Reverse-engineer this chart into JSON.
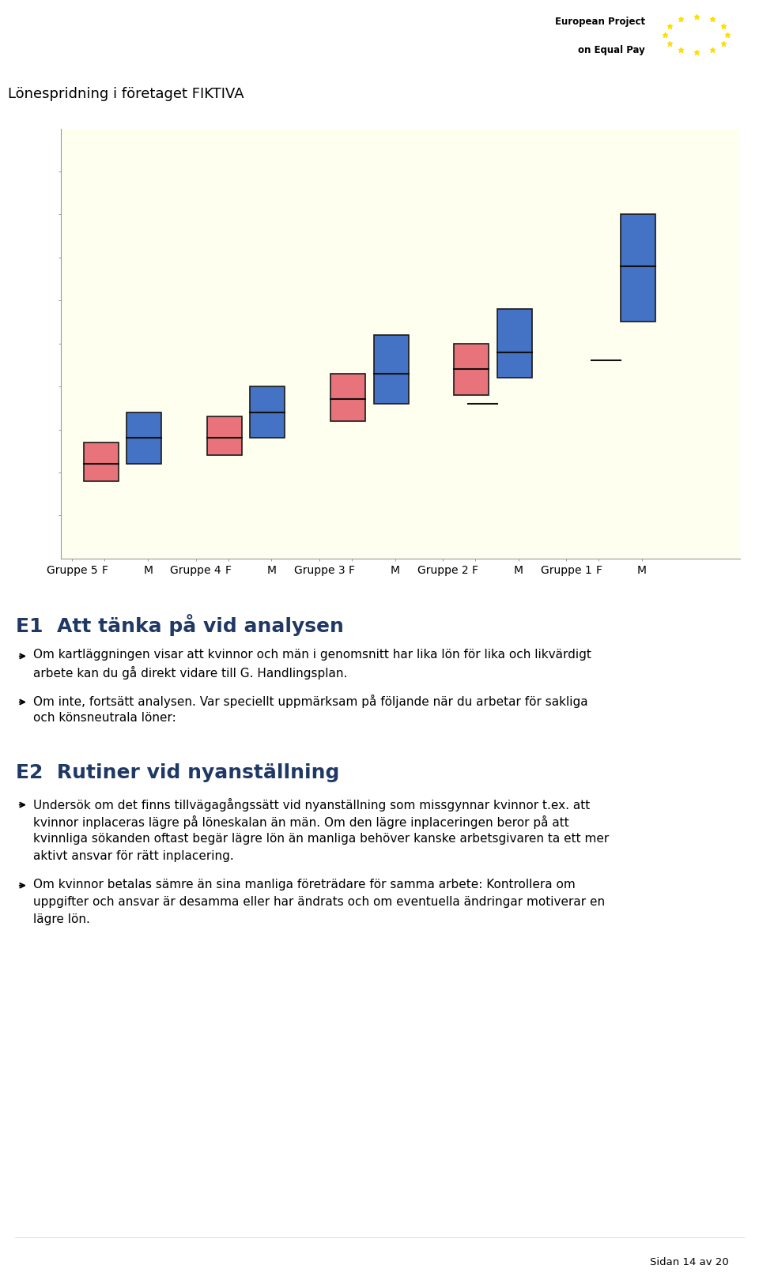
{
  "page_title": "Lönespridning i företaget FIKTIVA",
  "chart_bg": "#FFFFF0",
  "page_bg": "#FFFFFF",
  "groups": [
    "Gruppe 5",
    "Gruppe 4",
    "Gruppe 3",
    "Gruppe 2",
    "Gruppe 1"
  ],
  "F_boxes": [
    {
      "q1": 18,
      "median": 22,
      "q3": 27,
      "whisker_low": null
    },
    {
      "q1": 24,
      "median": 28,
      "q3": 33,
      "whisker_low": null
    },
    {
      "q1": 32,
      "median": 37,
      "q3": 43,
      "whisker_low": null
    },
    {
      "q1": 38,
      "median": 44,
      "q3": 50,
      "whisker_low": null
    },
    {
      "q1": null,
      "median": null,
      "q3": null,
      "whisker_low": null
    }
  ],
  "M_boxes": [
    {
      "q1": 22,
      "median": 28,
      "q3": 34,
      "whisker_low": null
    },
    {
      "q1": 28,
      "median": 34,
      "q3": 40,
      "whisker_low": null
    },
    {
      "q1": 36,
      "median": 43,
      "q3": 52,
      "whisker_low": null
    },
    {
      "q1": 42,
      "median": 48,
      "q3": 58,
      "whisker_low": 36
    },
    {
      "q1": 55,
      "median": 68,
      "q3": 80,
      "whisker_low": 46
    }
  ],
  "F_color": "#E8737A",
  "M_color": "#4472C4",
  "ylim": [
    0,
    100
  ],
  "ytick_positions": [
    10,
    20,
    30,
    40,
    50,
    60,
    70,
    80,
    90
  ],
  "heading_color": "#1F3864",
  "text_color": "#000000",
  "text_sections": [
    {
      "type": "heading1",
      "text": "E1  Att tänka på vid analysen"
    },
    {
      "type": "bullet",
      "text": "Om kartläggningen visar att kvinnor och män i genomsnitt har lika lön för lika och likvärdigt arbete kan du gå direkt vidare till G. Handlingsplan."
    },
    {
      "type": "bullet",
      "text": "Om inte, fortsätt analysen. Var speciellt uppmärksam på följande när du arbetar för sakliga och könsneutrala löner:"
    },
    {
      "type": "spacer"
    },
    {
      "type": "heading2",
      "text": "E2  Rutiner vid nyanställning"
    },
    {
      "type": "bullet",
      "text": "Undersök om det finns tillvägagångssätt vid nyanställning som missgynnar kvinnor t.ex. att kvinnor inplaceras lägre på löneskalan än män. Om den lägre inplaceringen beror på att kvinnliga sökanden oftast begär lägre lön än manliga behöver kanske arbetsgivaren ta ett mer aktivt ansvar för rätt inplacering."
    },
    {
      "type": "bullet",
      "text": "Om kvinnor betalas sämre än sina manliga företrädare för samma arbete: Kontrollera om uppgifter och ansvar är desamma eller har ändrats och om eventuella ändringar motiverar en lägre lön."
    }
  ],
  "footer_text": "Sidan 14 av 20",
  "eu_text1": "European Project",
  "eu_text2": "on Equal Pay"
}
